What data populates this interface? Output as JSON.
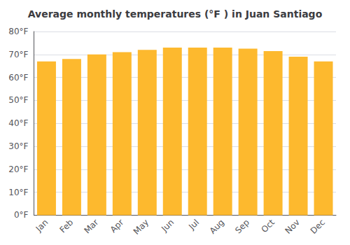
{
  "chart_data": {
    "type": "bar",
    "title": "Average monthly temperatures (°F ) in Juan Santiago",
    "categories": [
      "Jan",
      "Feb",
      "Mar",
      "Apr",
      "May",
      "Jun",
      "Jul",
      "Aug",
      "Sep",
      "Oct",
      "Nov",
      "Dec"
    ],
    "values": [
      67,
      68,
      70,
      71,
      72,
      73,
      73,
      73,
      72.5,
      71.5,
      69,
      67
    ],
    "color": "#FDB92E",
    "ylim": [
      0,
      80
    ],
    "yticks": [
      {
        "value": 0,
        "label": "0°F"
      },
      {
        "value": 10,
        "label": "10°F"
      },
      {
        "value": 20,
        "label": "20°F"
      },
      {
        "value": 30,
        "label": "30°F"
      },
      {
        "value": 40,
        "label": "40°F"
      },
      {
        "value": 50,
        "label": "50°F"
      },
      {
        "value": 60,
        "label": "60°F"
      },
      {
        "value": 70,
        "label": "70°F"
      },
      {
        "value": 80,
        "label": "80°F"
      }
    ],
    "grid": true
  }
}
